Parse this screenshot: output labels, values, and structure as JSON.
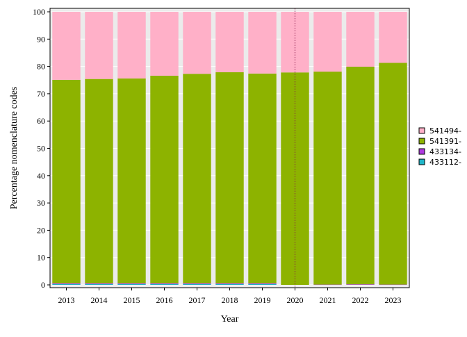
{
  "chart_data": {
    "type": "bar",
    "stacked": true,
    "xlabel": "Year",
    "ylabel": "Percentage nomenclature codes",
    "ylim": [
      0,
      100
    ],
    "yticks": [
      0,
      10,
      20,
      30,
      40,
      50,
      60,
      70,
      80,
      90,
      100
    ],
    "categories": [
      "2013",
      "2014",
      "2015",
      "2016",
      "2017",
      "2018",
      "2019",
      "2020",
      "2021",
      "2022",
      "2023"
    ],
    "series": [
      {
        "name": "433112-",
        "color": "#1fb5c8",
        "values": [
          0.3,
          0.3,
          0.3,
          0.3,
          0.3,
          0.3,
          0.3,
          0.0,
          0.0,
          0.0,
          0.0
        ]
      },
      {
        "name": "433134-",
        "color": "#b03be0",
        "values": [
          0.3,
          0.3,
          0.3,
          0.3,
          0.3,
          0.3,
          0.3,
          0.0,
          0.1,
          0.2,
          0.1
        ]
      },
      {
        "name": "541391-",
        "color": "#8db300",
        "values": [
          74.5,
          74.8,
          75.0,
          76.0,
          76.7,
          77.3,
          76.8,
          77.8,
          78.0,
          79.7,
          81.2
        ]
      },
      {
        "name": "541494-",
        "color": "#ffb0c8",
        "values": [
          24.9,
          24.6,
          24.4,
          23.4,
          22.7,
          22.1,
          22.6,
          22.2,
          21.9,
          20.1,
          18.7
        ]
      }
    ],
    "legend": {
      "position": "right",
      "order": [
        "541494-",
        "541391-",
        "433134-",
        "433112-"
      ]
    },
    "vline": {
      "x": "2020",
      "color": "#8b1a4a",
      "style": "dotted"
    },
    "grid": "horizontal",
    "background": "#ebebeb"
  }
}
